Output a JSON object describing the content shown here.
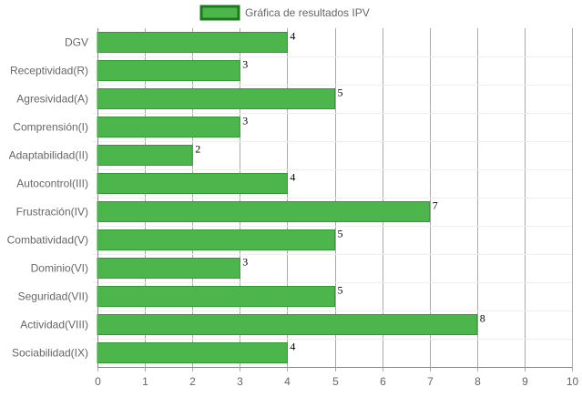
{
  "chart_data": {
    "type": "bar",
    "orientation": "horizontal",
    "legend": {
      "label": "Gráfica de resultados IPV",
      "position": "top-center"
    },
    "categories": [
      "DGV",
      "Receptividad(R)",
      "Agresividad(A)",
      "Comprensión(I)",
      "Adaptabilidad(II)",
      "Autocontrol(III)",
      "Frustración(IV)",
      "Combatividad(V)",
      "Dominio(VI)",
      "Seguridad(VII)",
      "Actividad(VIII)",
      "Sociabilidad(IX)"
    ],
    "series": [
      {
        "name": "Gráfica de resultados IPV",
        "values": [
          4,
          3,
          5,
          3,
          2,
          4,
          7,
          5,
          3,
          5,
          8,
          4
        ]
      }
    ],
    "xlim": [
      0,
      10
    ],
    "x_ticks": [
      "0",
      "1",
      "2",
      "3",
      "4",
      "5",
      "6",
      "7",
      "8",
      "9",
      "10"
    ],
    "grid": true,
    "colors": {
      "bar_fill": "#4cb64c",
      "bar_border": "#2f9a2f",
      "legend_fill": "#4cb64c",
      "legend_border": "#1a7a1a",
      "vertical_grid": "#aaaaaa",
      "horizontal_grid": "#eeeeee",
      "axis": "#888888"
    }
  }
}
